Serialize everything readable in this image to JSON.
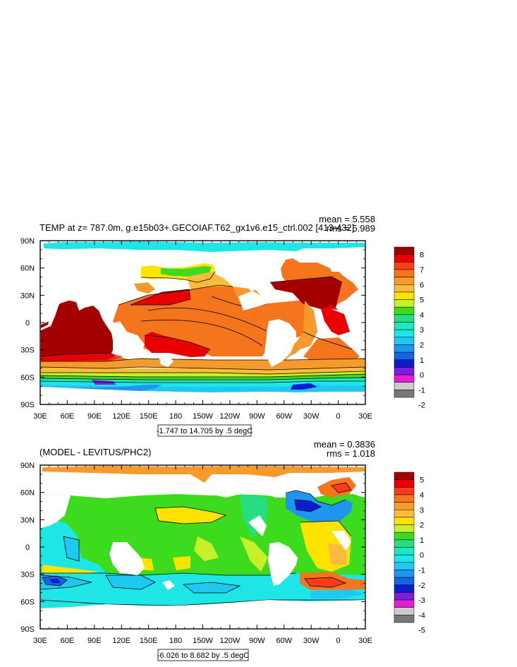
{
  "chart_data": [
    {
      "type": "heatmap",
      "title": "TEMP at z= 787.0m, g.e15b03+.GECOIAF.T62_gx1v6.e15_ctrl.002 [413-432]",
      "stats": [
        "mean = 5.558",
        "rms = 5.989"
      ],
      "x_ticks": [
        "30E",
        "60E",
        "90E",
        "120E",
        "150E",
        "180",
        "150W",
        "120W",
        "90W",
        "60W",
        "30W",
        "0",
        "30E"
      ],
      "y_ticks": [
        "90N",
        "60N",
        "30N",
        "0",
        "30S",
        "60S",
        "90S"
      ],
      "xlim": [
        30,
        390
      ],
      "ylim": [
        -90,
        90
      ],
      "contour_info": "-1.747 to 14.705 by .5 degC",
      "colorbar": {
        "labels": [
          "8",
          "7",
          "6",
          "5",
          "4",
          "3",
          "2",
          "1",
          "0",
          "-1",
          "-2"
        ],
        "colors": [
          "#a50000",
          "#e80000",
          "#ff3b1a",
          "#f5751c",
          "#f79a2c",
          "#fbbb3c",
          "#ffe300",
          "#c8f02a",
          "#3cdb1e",
          "#26dd82",
          "#1ee6c0",
          "#1ee6e6",
          "#1ec8f0",
          "#1e96f0",
          "#1464e6",
          "#0a1ecf",
          "#7a1ee0",
          "#e61ed2",
          "#cccccc",
          "#787878"
        ]
      }
    },
    {
      "type": "heatmap",
      "title": "(MODEL - LEVITUS/PHC2)",
      "stats": [
        "mean = 0.3836",
        "rms = 1.018"
      ],
      "x_ticks": [
        "30E",
        "60E",
        "90E",
        "120E",
        "150E",
        "180",
        "150W",
        "120W",
        "90W",
        "60W",
        "30W",
        "0",
        "30E"
      ],
      "y_ticks": [
        "90N",
        "60N",
        "30N",
        "0",
        "30S",
        "60S",
        "90S"
      ],
      "xlim": [
        30,
        390
      ],
      "ylim": [
        -90,
        90
      ],
      "contour_info": "-6.026 to 8.682 by .5 degC",
      "colorbar": {
        "labels": [
          "5",
          "4",
          "3",
          "2",
          "1",
          "0",
          "-1",
          "-2",
          "-3",
          "-4",
          "-5"
        ],
        "colors": [
          "#a50000",
          "#e80000",
          "#ff3b1a",
          "#f5751c",
          "#f79a2c",
          "#fbbb3c",
          "#ffe300",
          "#c8f02a",
          "#3cdb1e",
          "#26dd82",
          "#1ee6c0",
          "#1ee6e6",
          "#1ec8f0",
          "#1e96f0",
          "#1464e6",
          "#0a1ecf",
          "#7a1ee0",
          "#e61ed2",
          "#cccccc",
          "#787878"
        ]
      }
    }
  ]
}
